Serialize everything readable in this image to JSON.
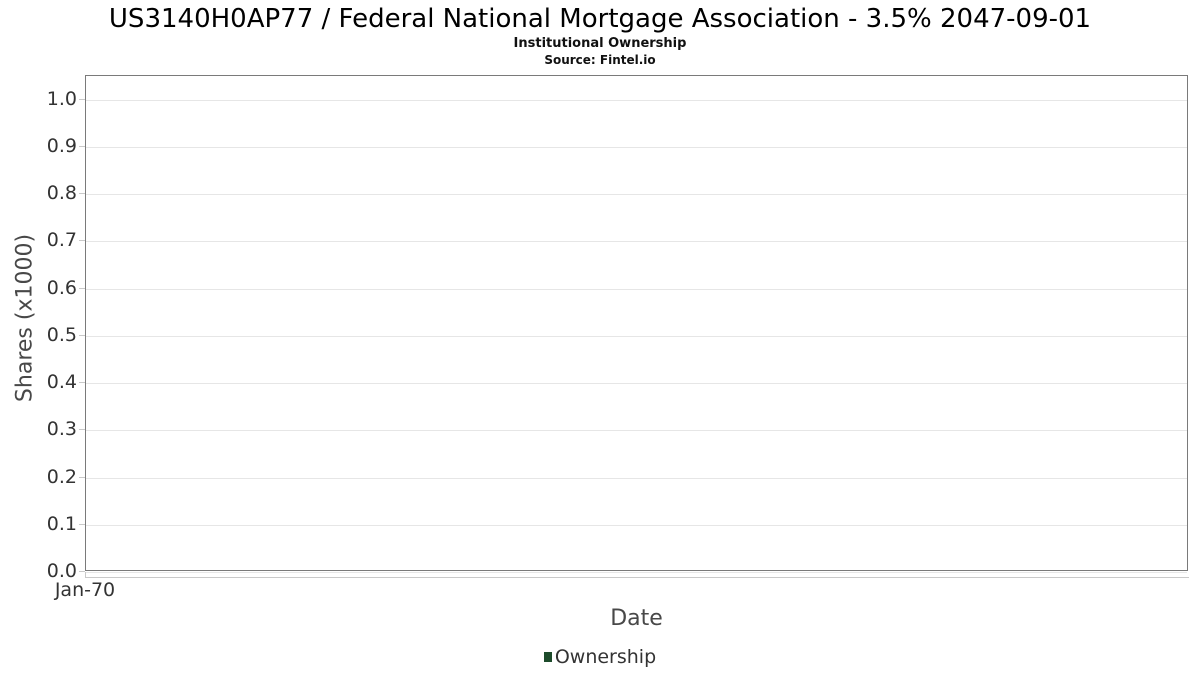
{
  "header": {
    "title": "US3140H0AP77 / Federal National Mortgage Association - 3.5% 2047-09-01",
    "subtitle": "Institutional Ownership",
    "source": "Source: Fintel.io"
  },
  "chart_data": {
    "type": "line",
    "title": "US3140H0AP77 / Federal National Mortgage Association - 3.5% 2047-09-01",
    "subtitle": "Institutional Ownership",
    "source": "Source: Fintel.io",
    "xlabel": "Date",
    "ylabel": "Shares (x1000)",
    "x_ticks": [
      "Jan-70"
    ],
    "y_ticks": [
      0.0,
      0.1,
      0.2,
      0.3,
      0.4,
      0.5,
      0.6,
      0.7,
      0.8,
      0.9,
      1.0
    ],
    "ylim": [
      0,
      1.05
    ],
    "grid": true,
    "legend_position": "bottom-center",
    "series": [
      {
        "name": "Ownership",
        "color": "#1d4b2b",
        "x": [],
        "values": []
      }
    ]
  },
  "colors": {
    "background": "#ffffff",
    "grid": "#e6e6e6",
    "plot_border": "#7a7a7a",
    "axis_line": "#c9c9c9",
    "tick_label": "#333333",
    "axis_title": "#484848",
    "legend_marker": "#1d4b2b"
  }
}
